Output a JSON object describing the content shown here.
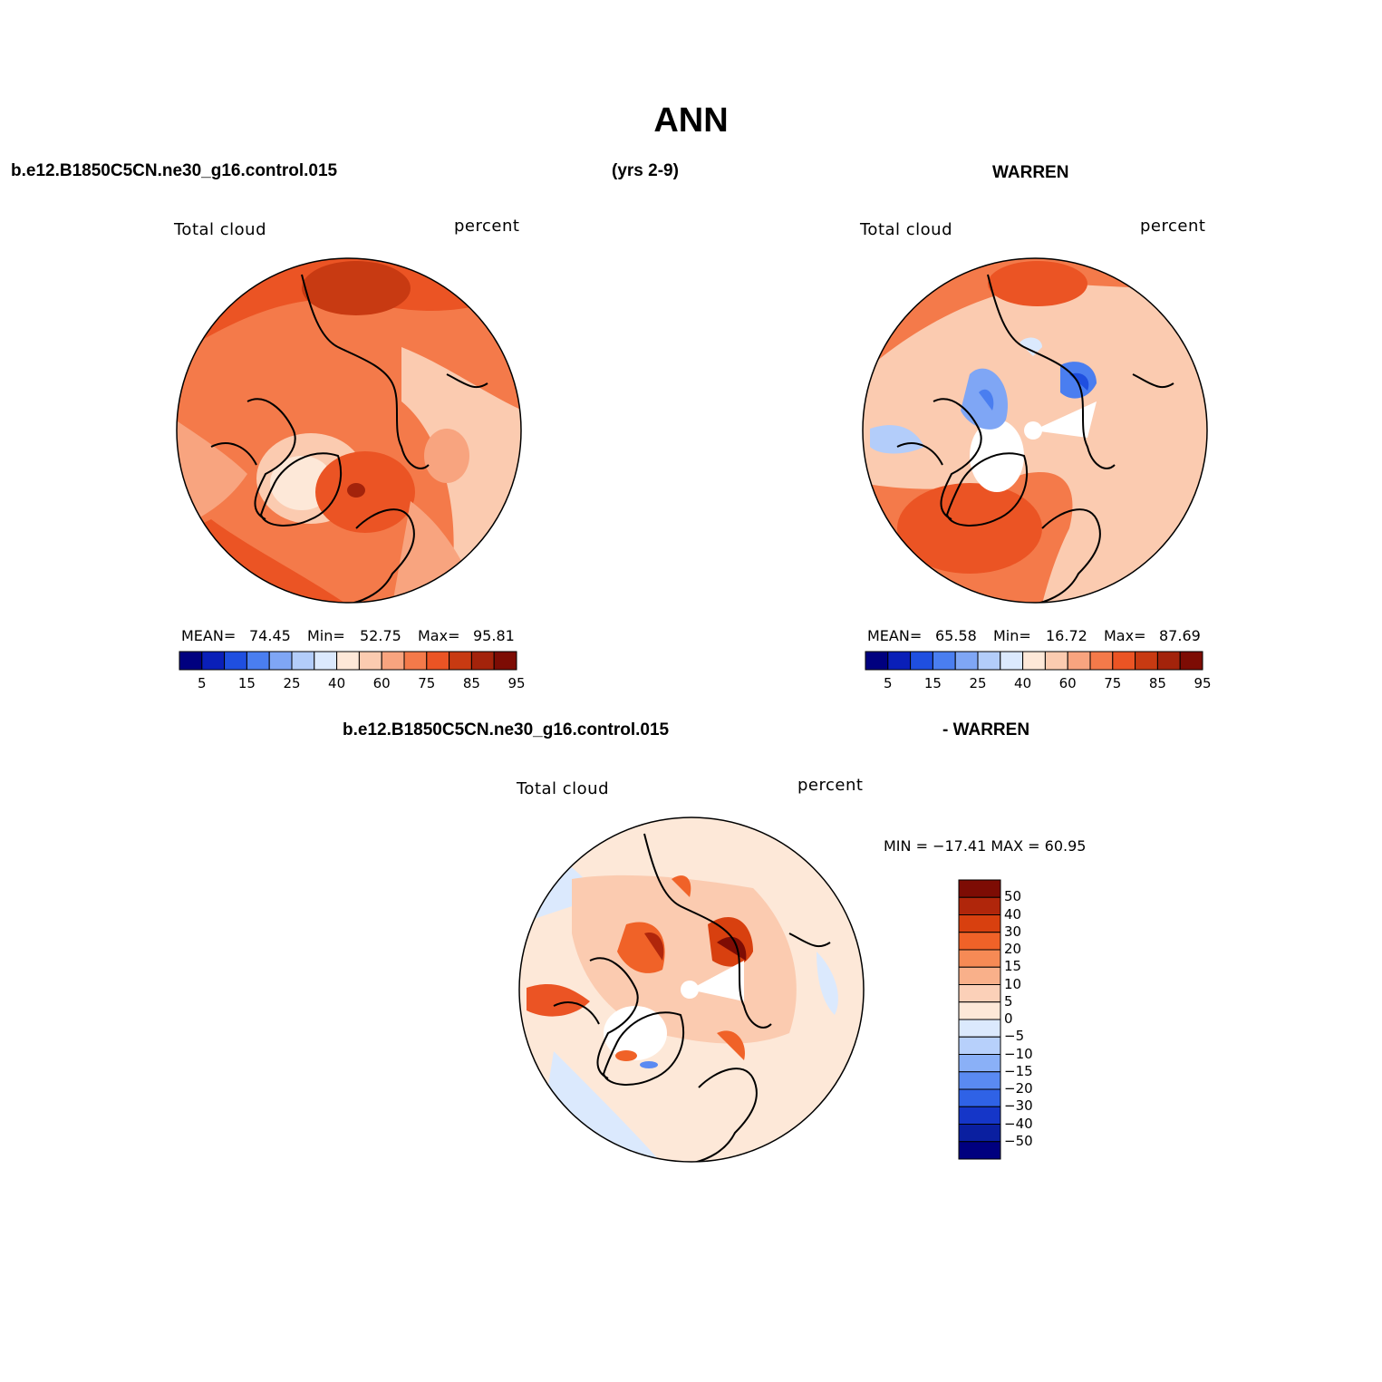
{
  "title": "ANN",
  "header": {
    "case_name": "b.e12.B1850C5CN.ne30_g16.control.015",
    "years": "(yrs 2-9)",
    "obs_name": "WARREN",
    "diff_case_name": "b.e12.B1850C5CN.ne30_g16.control.015",
    "diff_obs_name": "- WARREN"
  },
  "panels": {
    "model": {
      "variable": "Total cloud",
      "units": "percent",
      "mean_label": "MEAN=",
      "mean": "74.45",
      "min_label": "Min=",
      "min": "52.75",
      "max_label": "Max=",
      "max": "95.81"
    },
    "obs": {
      "variable": "Total cloud",
      "units": "percent",
      "mean_label": "MEAN=",
      "mean": "65.58",
      "min_label": "Min=",
      "min": "16.72",
      "max_label": "Max=",
      "max": "87.69"
    },
    "diff": {
      "variable": "Total cloud",
      "units": "percent",
      "minmax": "MIN = −17.41  MAX =   60.95"
    }
  },
  "colorbar_abs": {
    "colors": [
      "#00007f",
      "#0a1fb8",
      "#1f4fe0",
      "#4a7ef0",
      "#7fa6f5",
      "#b3cdfa",
      "#dbe9fd",
      "#fde8d8",
      "#fbcbb0",
      "#f8a47f",
      "#f47a4a",
      "#eb5424",
      "#c83a12",
      "#a3230b",
      "#7d0c04"
    ],
    "tick_labels": [
      "5",
      "15",
      "25",
      "40",
      "60",
      "75",
      "85",
      "95"
    ]
  },
  "colorbar_diff": {
    "colors": [
      "#7d0c04",
      "#b0260b",
      "#d8400f",
      "#f06228",
      "#f68a55",
      "#f9b08a",
      "#fbd0b8",
      "#fde8d8",
      "#dbe9fd",
      "#b7d0fb",
      "#8ab0f7",
      "#5a8af2",
      "#2f62e6",
      "#1536c8",
      "#0a1fa0",
      "#00007f"
    ],
    "tick_labels": [
      "50",
      "40",
      "30",
      "20",
      "15",
      "10",
      "5",
      "0",
      "−5",
      "−10",
      "−15",
      "−20",
      "−30",
      "−40",
      "−50"
    ]
  }
}
